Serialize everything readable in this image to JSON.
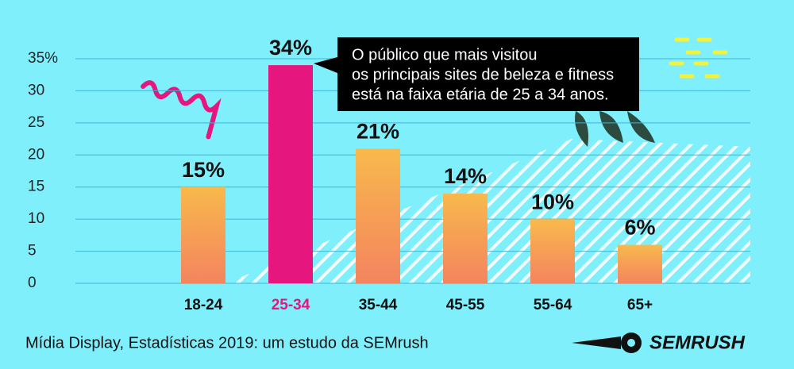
{
  "chart_data": {
    "type": "bar",
    "categories": [
      "18-24",
      "25-34",
      "35-44",
      "45-55",
      "55-64",
      "65+"
    ],
    "values": [
      15,
      34,
      21,
      14,
      10,
      6
    ],
    "value_labels": [
      "15%",
      "34%",
      "21%",
      "14%",
      "10%",
      "6%"
    ],
    "colors": [
      "#f59a5c",
      "#e6167f",
      "#f59a5c",
      "#f59a5c",
      "#f59a5c",
      "#f59a5c"
    ],
    "category_label_colors": [
      "#111111",
      "#e6167f",
      "#111111",
      "#111111",
      "#111111",
      "#111111"
    ],
    "ylim": [
      0,
      35
    ],
    "yticks": [
      0,
      5,
      10,
      15,
      20,
      25,
      30,
      {
        "value": 35,
        "label": "35%"
      }
    ],
    "grid": true,
    "annotation": [
      "O público que mais visitou",
      "os principais sites de beleza e fitness",
      "está na faixa etária de 25 a 34 anos."
    ],
    "footer": "Mídia Display, Estadísticas 2019: um estudo da SEMrush",
    "logo": "SEMRUSH"
  }
}
